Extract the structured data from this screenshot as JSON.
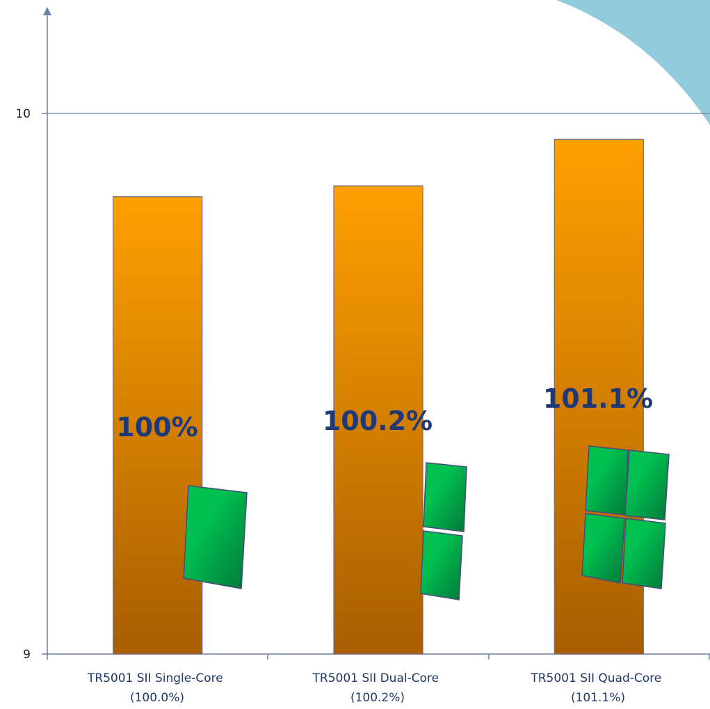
{
  "chart_data": {
    "type": "bar",
    "categories": [
      [
        "TR5001 SII Single-Core",
        "(100.0%)"
      ],
      [
        "TR5001 SII Dual-Core",
        "(100.2%)"
      ],
      [
        "TR5001 SII Quad-Core",
        "(101.1%)"
      ]
    ],
    "values": [
      9.846,
      9.866,
      9.952
    ],
    "data_labels": [
      "100%",
      "100.2%",
      "101.1%"
    ],
    "core_counts": [
      1,
      2,
      4
    ],
    "ylim": [
      9,
      10
    ],
    "y_ticks": [
      "9",
      "10"
    ],
    "gridlines": [
      10
    ],
    "title": "",
    "xlabel": "",
    "ylabel": "",
    "colors": {
      "bar_top": "#ffa000",
      "bar_bottom": "#a85e00",
      "bar_stroke": "#6b6b8a",
      "chip_light": "#00c050",
      "chip_dark": "#00783a",
      "chip_stroke": "#4a4a7a",
      "axis": "#6b7fa8",
      "decoration": "#92cbdb"
    }
  }
}
